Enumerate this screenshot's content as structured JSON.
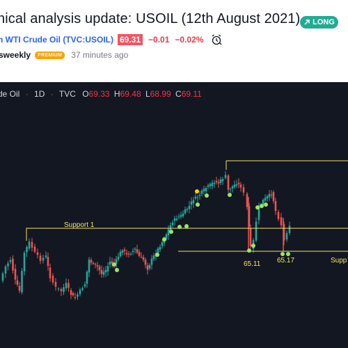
{
  "idea": {
    "title": "nical analysis update: USOIL (12th August 2021)",
    "badge": {
      "label": "LONG",
      "icon": "arrow-up-right-icon",
      "color": "#22ab94"
    },
    "symbol_link": "n WTI Crude Oil (TVC:USOIL)",
    "price": "69.31",
    "change": "−0.01",
    "change_percent": "−0.02%",
    "alert_icon": "alarm-clock-icon",
    "author": "sweekly",
    "author_badge": "PREMIUM",
    "posted": "37 minutes ago"
  },
  "chart": {
    "legend": {
      "symbol": "de Oil",
      "interval": "1D",
      "source": "TVC",
      "open_label": "O",
      "open": "69.33",
      "high_label": "H",
      "high": "69.48",
      "low_label": "L",
      "low": "68.99",
      "close_label": "C",
      "close": "69.11"
    },
    "annotations": {
      "support1": "Support 1",
      "low1": "65.11",
      "low2": "65.17",
      "support2": "Supp"
    },
    "colors": {
      "background": "#131722",
      "up": "#26a69a",
      "down": "#ef5350",
      "line": "#f5e663",
      "dot_green": "#9be564",
      "dot_yellow": "#f7d31c"
    }
  },
  "chart_data": {
    "type": "candlestick",
    "title": "",
    "interval": "1D",
    "horizontal_levels": [
      {
        "label": "Support 1"
      },
      {
        "label": "Supp"
      }
    ],
    "labeled_lows": [
      65.11,
      65.17
    ],
    "last_bar": {
      "open": 69.33,
      "high": 69.48,
      "low": 68.99,
      "close": 69.11
    }
  }
}
